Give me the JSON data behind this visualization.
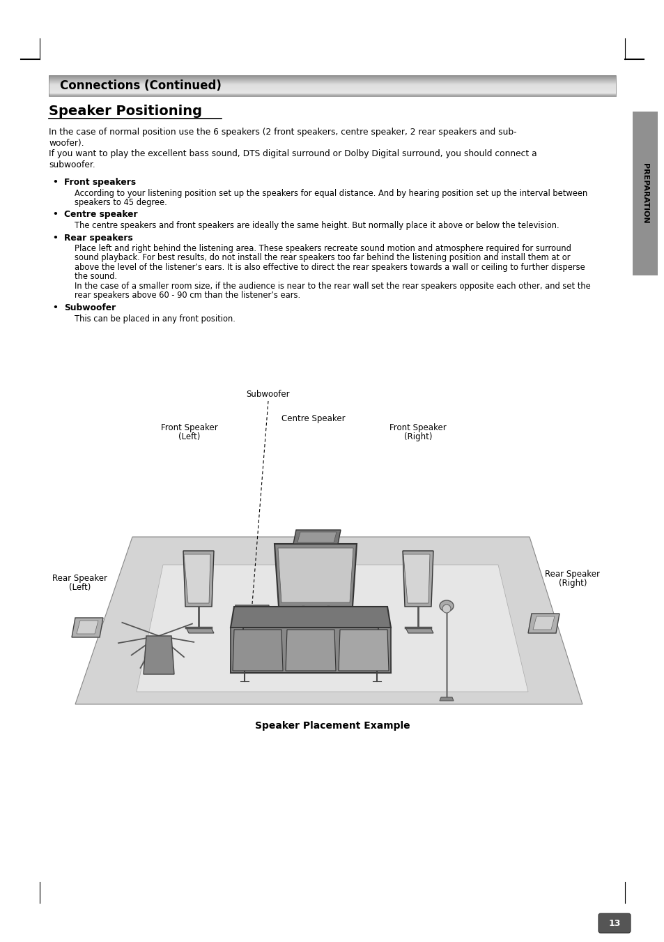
{
  "title_bar_text": "Connections (Continued)",
  "section_title": "Speaker Positioning",
  "body_para": [
    "In the case of normal position use the 6 speakers (2 front speakers, centre speaker, 2 rear speakers and sub-",
    "woofer).",
    "If you want to play the excellent bass sound, DTS digital surround or Dolby Digital surround, you should connect a",
    "subwoofer."
  ],
  "bullet_headings": [
    "Front speakers",
    "Centre speaker",
    "Rear speakers",
    "Subwoofer"
  ],
  "bullet_texts": [
    [
      "According to your listening position set up the speakers for equal distance. And by hearing position set up the interval between",
      "speakers to 45 degree."
    ],
    [
      "The centre speakers and front speakers are ideally the same height. But normally place it above or below the television."
    ],
    [
      "Place left and right behind the listening area. These speakers recreate sound motion and atmosphere required for surround",
      "sound playback. For best results, do not install the rear speakers too far behind the listening position and install them at or",
      "above the level of the listener’s ears. It is also effective to direct the rear speakers towards a wall or ceiling to further disperse",
      "the sound.",
      "In the case of a smaller room size, if the audience is near to the rear wall set the rear speakers opposite each other, and set the",
      "rear speakers above 60 - 90 cm than the listener’s ears."
    ],
    [
      "This can be placed in any front position."
    ]
  ],
  "diagram_caption": "Speaker Placement Example",
  "sidebar_text": "PREPARATION",
  "page_number": "13",
  "bg_color": "#ffffff",
  "sidebar_color": "#909090"
}
